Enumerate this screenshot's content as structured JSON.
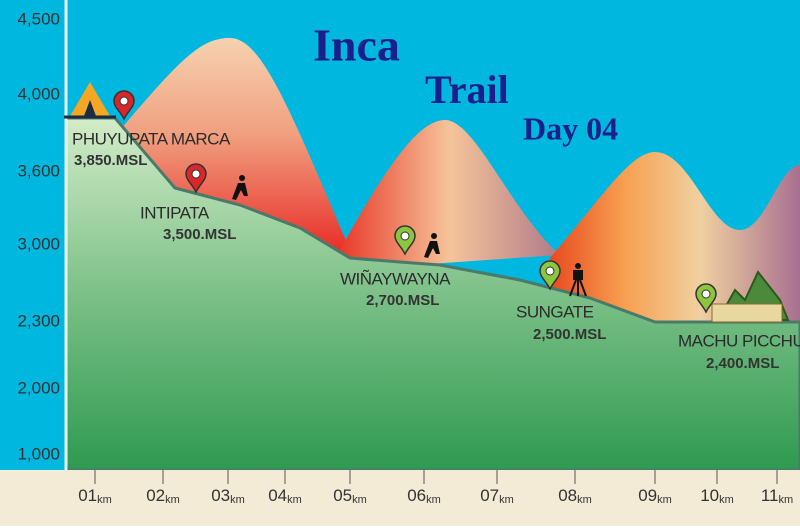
{
  "title": {
    "line1": "Inca",
    "line2": "Trail",
    "line3": "Day 04"
  },
  "y_axis": [
    "4,500",
    "4,000",
    "3,600",
    "3,000",
    "2,300",
    "2,000",
    "1,000"
  ],
  "x_axis": [
    {
      "number": "01",
      "unit": "km"
    },
    {
      "number": "02",
      "unit": "km"
    },
    {
      "number": "03",
      "unit": "km"
    },
    {
      "number": "04",
      "unit": "km"
    },
    {
      "number": "05",
      "unit": "km"
    },
    {
      "number": "06",
      "unit": "km"
    },
    {
      "number": "07",
      "unit": "km"
    },
    {
      "number": "08",
      "unit": "km"
    },
    {
      "number": "09",
      "unit": "km"
    },
    {
      "number": "10",
      "unit": "km"
    },
    {
      "number": "11",
      "unit": "km"
    }
  ],
  "waypoints": [
    {
      "name": "PHUYUPATA MARCA",
      "elevation": "3,850.MSL"
    },
    {
      "name": "INTIPATA",
      "elevation": "3,500.MSL"
    },
    {
      "name": "WIÑAYWAYNA",
      "elevation": "2,700.MSL"
    },
    {
      "name": "SUNGATE",
      "elevation": "2,500.MSL"
    },
    {
      "name": "MACHU PICCHU",
      "elevation": "2,400.MSL"
    }
  ]
}
